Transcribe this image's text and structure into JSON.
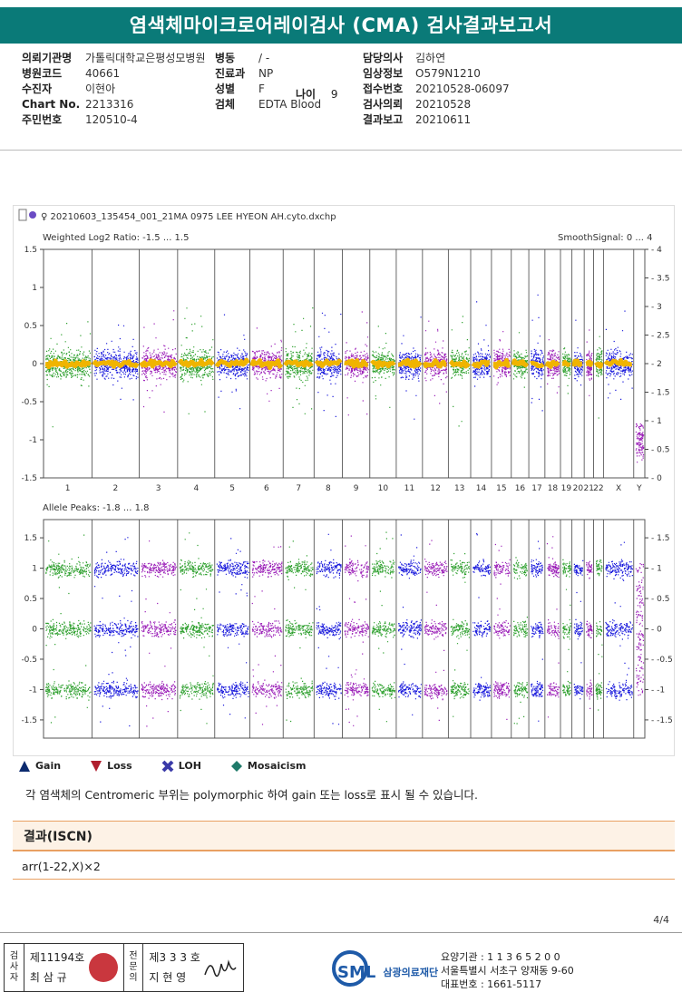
{
  "report": {
    "title": "염색체마이크로어레이검사 (CMA) 검사결과보고서"
  },
  "patient": {
    "col1": [
      {
        "label": "의뢰기관명",
        "value": "가톨릭대학교은평성모병원"
      },
      {
        "label": "병원코드",
        "value": "40661"
      },
      {
        "label": "수진자",
        "value": "이현아"
      },
      {
        "label": "Chart No.",
        "value": "2213316"
      },
      {
        "label": "주민번호",
        "value": "120510-4"
      }
    ],
    "col2": [
      {
        "label": "병동",
        "value": "/ -"
      },
      {
        "label": "진료과",
        "value": "NP"
      },
      {
        "label": "성별",
        "value": "F"
      },
      {
        "label": "검체",
        "value": "EDTA Blood"
      }
    ],
    "age": {
      "label": "나이",
      "value": "9"
    },
    "col3": [
      {
        "label": "담당의사",
        "value": "김하연"
      },
      {
        "label": "임상정보",
        "value": "O579N1210"
      },
      {
        "label": "접수번호",
        "value": "20210528-06097"
      },
      {
        "label": "검사의뢰",
        "value": "20210528"
      },
      {
        "label": "결과보고",
        "value": "20210611"
      }
    ]
  },
  "chart_data": {
    "type": "scatter",
    "file": "20210603_135454_001_21MA 0975 LEE HYEON AH.cyto.dxchp",
    "top_panel": {
      "title": "Weighted Log2 Ratio: -1.5 ... 1.5",
      "right_title": "SmoothSignal: 0 ... 4",
      "ylim": [
        -1.5,
        1.5
      ],
      "yticks": [
        "1.5",
        "1",
        "0.5",
        "0",
        "-0.5",
        "-1",
        "-1.5"
      ],
      "right_ylim": [
        0,
        4
      ],
      "right_ticks": [
        "4",
        "3.5",
        "3",
        "2.5",
        "2",
        "1.5",
        "1",
        "0.5",
        "0"
      ]
    },
    "bottom_panel": {
      "title": "Allele Peaks: -1.8 ... 1.8",
      "ylim": [
        -1.8,
        1.8
      ],
      "yticks": [
        "1.5",
        "1",
        "0.5",
        "0",
        "-0.5",
        "-1",
        "-1.5"
      ],
      "bands": [
        1,
        0,
        -1
      ]
    },
    "chromosomes": [
      "1",
      "2",
      "3",
      "4",
      "5",
      "6",
      "7",
      "8",
      "9",
      "10",
      "11",
      "12",
      "13",
      "14",
      "15",
      "16",
      "17",
      "18",
      "19",
      "20",
      "21",
      "22",
      "X",
      "Y"
    ],
    "chromosome_colors": [
      "#2ea02e",
      "#1a1adc",
      "#9b1fb8",
      "#2ea02e",
      "#1a1adc",
      "#9b1fb8",
      "#2ea02e",
      "#1a1adc",
      "#9b1fb8",
      "#2ea02e",
      "#1a1adc",
      "#9b1fb8",
      "#2ea02e",
      "#1a1adc",
      "#9b1fb8",
      "#2ea02e",
      "#1a1adc",
      "#9b1fb8",
      "#2ea02e",
      "#1a1adc",
      "#9b1fb8",
      "#2ea02e",
      "#1a1adc",
      "#9b1fb8"
    ],
    "smooth_color": "#f0b400"
  },
  "legend": {
    "items": [
      {
        "label": "Gain",
        "icon": "triangle-up-icon",
        "color": "#0b2a6e"
      },
      {
        "label": "Loss",
        "icon": "triangle-down-icon",
        "color": "#b01f2e"
      },
      {
        "label": "LOH",
        "icon": "loh-icon",
        "color": "#3a3aa8"
      },
      {
        "label": "Mosaicism",
        "icon": "diamond-icon",
        "color": "#1f7a6a"
      }
    ]
  },
  "note": "각 염색체의 Centromeric 부위는 polymorphic 하여 gain 또는 loss로 표시 될 수 있습니다.",
  "result": {
    "heading": "결과(ISCN)",
    "value": "arr(1-22,X)×2"
  },
  "page": "4/4",
  "signatures": {
    "tester_label": [
      "검",
      "사",
      "자"
    ],
    "tester": {
      "no": "제11194호",
      "name": "최 삼 규"
    },
    "reviewer_label": [
      "전",
      "문",
      "의"
    ],
    "reviewer": {
      "no": "제3 3 3 호",
      "name": "지 현 영"
    }
  },
  "org": {
    "logo": "SML",
    "name": "삼광의료재단",
    "lines": [
      "요양기관 : 1 1 3 6 5 2 0 0",
      "서울특별시 서초구 양재동 9-60",
      "대표번호 : 1661-5117"
    ]
  }
}
